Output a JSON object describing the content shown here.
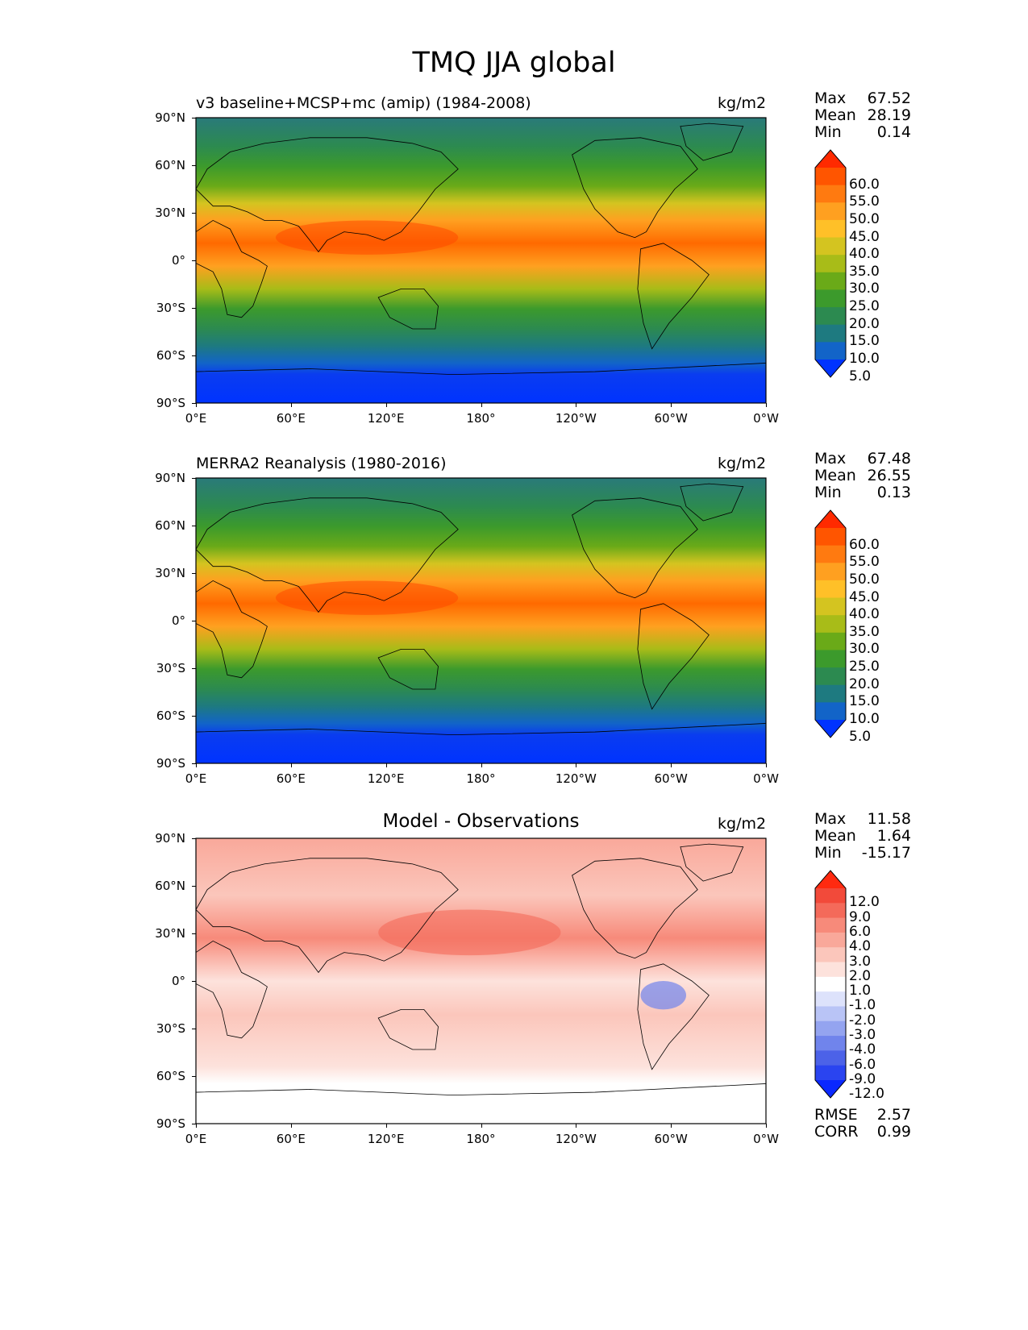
{
  "figure": {
    "title": "TMQ JJA global",
    "lat_labels": [
      "90°N",
      "60°N",
      "30°N",
      "0°",
      "30°S",
      "60°S",
      "90°S"
    ],
    "lon_labels": [
      "0°E",
      "60°E",
      "120°E",
      "180°",
      "120°W",
      "60°W",
      "0°W"
    ]
  },
  "panels": [
    {
      "title": "v3 baseline+MCSP+mc (amip) (1984-2008)",
      "units": "kg/m2",
      "stats": [
        {
          "label": "Max",
          "value": "67.52"
        },
        {
          "label": "Mean",
          "value": "28.19"
        },
        {
          "label": "Min",
          "value": "0.14"
        }
      ],
      "colorbar": {
        "labels": [
          "60.0",
          "55.0",
          "50.0",
          "45.0",
          "40.0",
          "35.0",
          "30.0",
          "25.0",
          "20.0",
          "15.0",
          "10.0",
          "5.0"
        ],
        "colors": [
          "#ff2a00",
          "#ff5500",
          "#ff7a10",
          "#ffa020",
          "#ffc028",
          "#d4c420",
          "#a8bc18",
          "#6aaa18",
          "#3c9a2c",
          "#2c8a50",
          "#1e7a80",
          "#1264c8",
          "#0033ff"
        ]
      }
    },
    {
      "title": "MERRA2 Reanalysis (1980-2016)",
      "units": "kg/m2",
      "stats": [
        {
          "label": "Max",
          "value": "67.48"
        },
        {
          "label": "Mean",
          "value": "26.55"
        },
        {
          "label": "Min",
          "value": "0.13"
        }
      ],
      "colorbar": {
        "labels": [
          "60.0",
          "55.0",
          "50.0",
          "45.0",
          "40.0",
          "35.0",
          "30.0",
          "25.0",
          "20.0",
          "15.0",
          "10.0",
          "5.0"
        ],
        "colors": [
          "#ff2a00",
          "#ff5500",
          "#ff7a10",
          "#ffa020",
          "#ffc028",
          "#d4c420",
          "#a8bc18",
          "#6aaa18",
          "#3c9a2c",
          "#2c8a50",
          "#1e7a80",
          "#1264c8",
          "#0033ff"
        ]
      }
    },
    {
      "title": "Model - Observations",
      "units": "kg/m2",
      "stats": [
        {
          "label": "Max",
          "value": "11.58"
        },
        {
          "label": "Mean",
          "value": "1.64"
        },
        {
          "label": "Min",
          "value": "-15.17"
        }
      ],
      "extra_stats": [
        {
          "label": "RMSE",
          "value": "2.57"
        },
        {
          "label": "CORR",
          "value": "0.99"
        }
      ],
      "colorbar": {
        "labels": [
          "12.0",
          "9.0",
          "6.0",
          "4.0",
          "3.0",
          "2.0",
          "1.0",
          "-1.0",
          "-2.0",
          "-3.0",
          "-4.0",
          "-6.0",
          "-9.0",
          "-12.0"
        ],
        "colors": [
          "#ff2a10",
          "#f24a3a",
          "#f46a5a",
          "#f78a7a",
          "#f9a89a",
          "#fbc6bb",
          "#fde2dc",
          "#ffffff",
          "#dde2fb",
          "#b9c4f6",
          "#94a4f0",
          "#7084ec",
          "#4c62e8",
          "#2a44f0",
          "#0a28ff"
        ]
      }
    }
  ]
}
